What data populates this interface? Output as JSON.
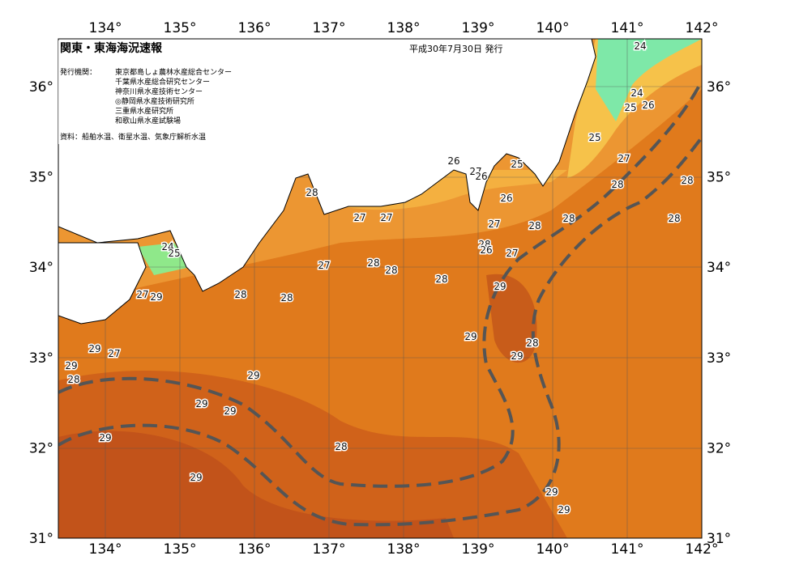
{
  "header": {
    "title": "関東・東海海況速報",
    "date": "平成30年7月30日 発行",
    "issuer_label": "発行機関：",
    "issuers": [
      "東京都島しょ農林水産総合センター",
      "千葉県水産総合研究センター",
      "神奈川県水産技術センター",
      "◎静岡県水産技術研究所",
      "三重県水産研究所",
      "和歌山県水産試験場"
    ],
    "source": "資料：船舶水温、衛星水温、気象庁解析水温"
  },
  "map": {
    "lon_labels": [
      "134°",
      "135°",
      "136°",
      "137°",
      "138°",
      "139°",
      "140°",
      "141°",
      "142°"
    ],
    "lat_labels": [
      "36°",
      "35°",
      "34°",
      "33°",
      "32°",
      "31°"
    ],
    "isotherm_labels": [
      24,
      24,
      25,
      26,
      25,
      27,
      28,
      28,
      28,
      26,
      27,
      26,
      25,
      26,
      28,
      27,
      27,
      27,
      28,
      28,
      28,
      26,
      27,
      24,
      25,
      28,
      27,
      28,
      28,
      29,
      28,
      28,
      27,
      29,
      29,
      28,
      29,
      29,
      27,
      29,
      28,
      29,
      29,
      29,
      29,
      28,
      29,
      29,
      29
    ]
  }
}
